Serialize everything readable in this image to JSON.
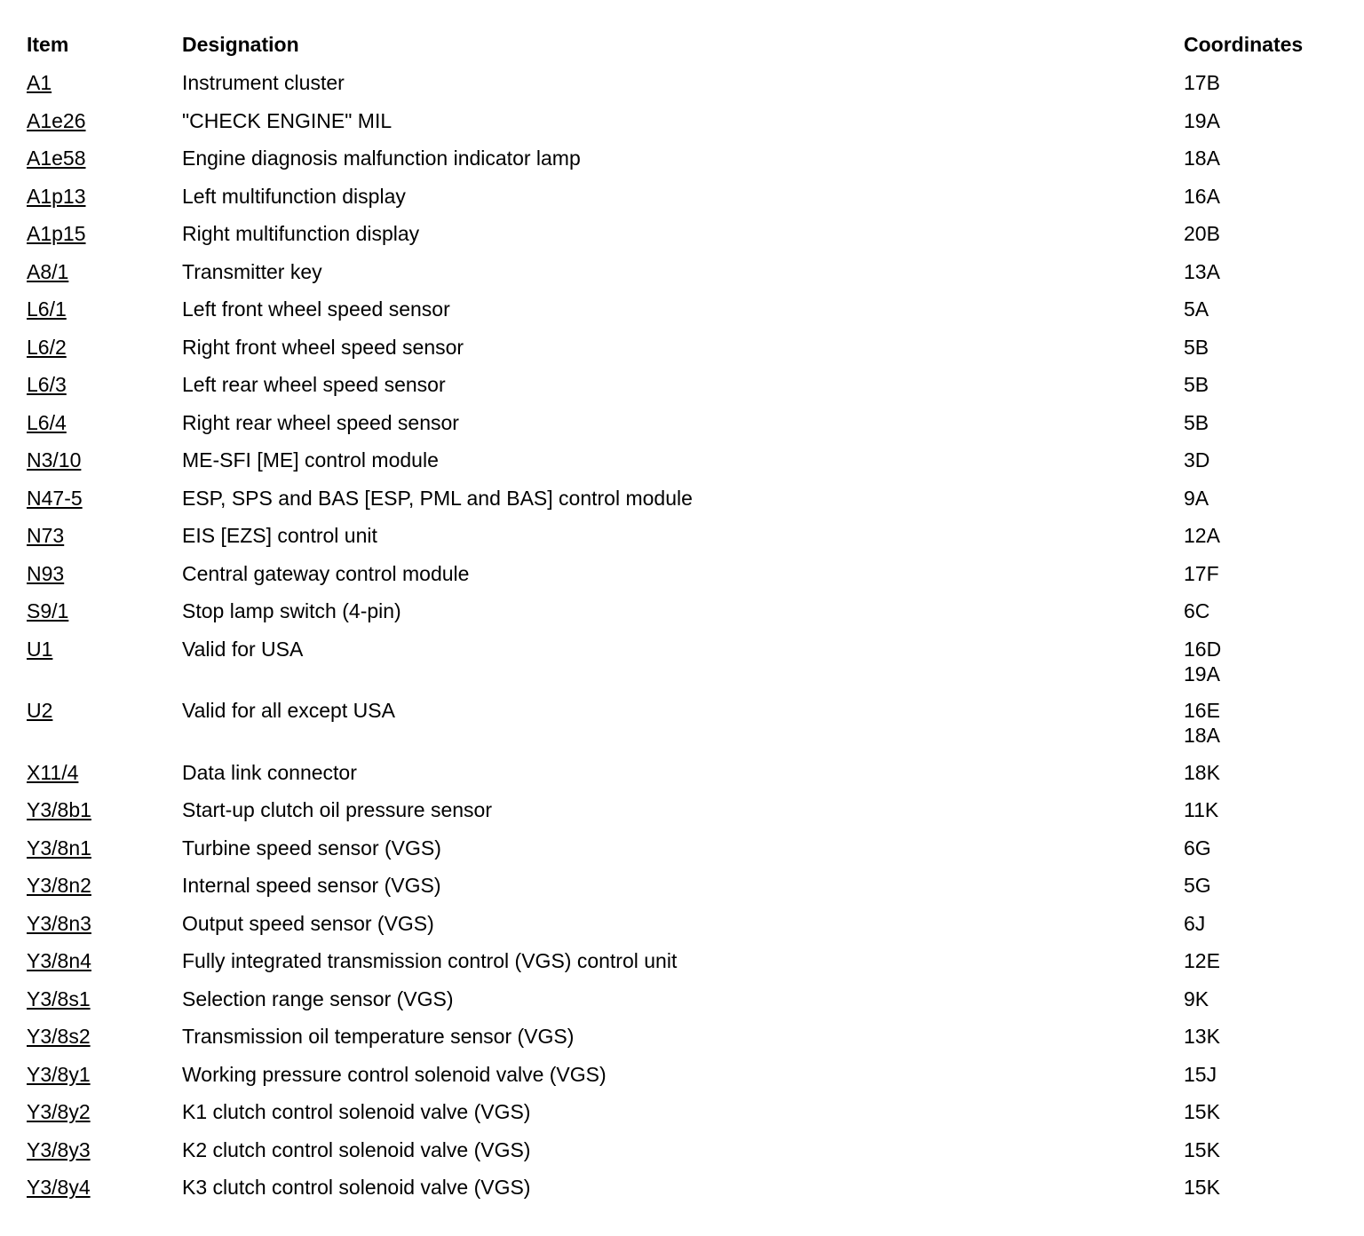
{
  "table": {
    "headers": {
      "item": "Item",
      "designation": "Designation",
      "coordinates": "Coordinates"
    },
    "rows": [
      {
        "item": "A1",
        "designation": "Instrument cluster",
        "coordinates": [
          "17B"
        ]
      },
      {
        "item": "A1e26",
        "designation": "\"CHECK ENGINE\" MIL",
        "coordinates": [
          "19A"
        ]
      },
      {
        "item": "A1e58",
        "designation": "Engine diagnosis malfunction indicator lamp",
        "coordinates": [
          "18A"
        ]
      },
      {
        "item": "A1p13",
        "designation": "Left multifunction display",
        "coordinates": [
          "16A"
        ]
      },
      {
        "item": "A1p15",
        "designation": "Right multifunction display",
        "coordinates": [
          "20B"
        ]
      },
      {
        "item": "A8/1",
        "designation": "Transmitter key",
        "coordinates": [
          "13A"
        ]
      },
      {
        "item": "L6/1",
        "designation": "Left front wheel speed sensor",
        "coordinates": [
          "5A"
        ]
      },
      {
        "item": "L6/2",
        "designation": "Right front wheel speed sensor",
        "coordinates": [
          "5B"
        ]
      },
      {
        "item": "L6/3",
        "designation": "Left rear wheel speed sensor",
        "coordinates": [
          "5B"
        ]
      },
      {
        "item": "L6/4",
        "designation": "Right rear wheel speed sensor",
        "coordinates": [
          "5B"
        ]
      },
      {
        "item": "N3/10",
        "designation": "ME-SFI [ME] control module",
        "coordinates": [
          "3D"
        ]
      },
      {
        "item": "N47-5",
        "designation": "ESP, SPS and BAS [ESP, PML and BAS] control module",
        "coordinates": [
          "9A"
        ]
      },
      {
        "item": "N73",
        "designation": "EIS [EZS] control unit",
        "coordinates": [
          "12A"
        ]
      },
      {
        "item": "N93",
        "designation": "Central gateway control module",
        "coordinates": [
          "17F"
        ]
      },
      {
        "item": "S9/1",
        "designation": "Stop lamp switch (4-pin)",
        "coordinates": [
          "6C"
        ]
      },
      {
        "item": "U1",
        "designation": "Valid for USA",
        "coordinates": [
          "16D",
          "19A"
        ]
      },
      {
        "item": "U2",
        "designation": "Valid for all except USA",
        "coordinates": [
          "16E",
          "18A"
        ]
      },
      {
        "item": "X11/4",
        "designation": "Data link connector",
        "coordinates": [
          "18K"
        ]
      },
      {
        "item": "Y3/8b1",
        "designation": "Start-up clutch oil pressure sensor",
        "coordinates": [
          "11K"
        ]
      },
      {
        "item": "Y3/8n1",
        "designation": "Turbine speed sensor (VGS)",
        "coordinates": [
          "6G"
        ]
      },
      {
        "item": "Y3/8n2",
        "designation": "Internal speed sensor (VGS)",
        "coordinates": [
          "5G"
        ]
      },
      {
        "item": "Y3/8n3",
        "designation": "Output speed sensor (VGS)",
        "coordinates": [
          "6J"
        ]
      },
      {
        "item": "Y3/8n4",
        "designation": "Fully integrated transmission control (VGS) control unit",
        "coordinates": [
          "12E"
        ]
      },
      {
        "item": "Y3/8s1",
        "designation": "Selection range sensor (VGS)",
        "coordinates": [
          "9K"
        ]
      },
      {
        "item": "Y3/8s2",
        "designation": "Transmission oil temperature sensor (VGS)",
        "coordinates": [
          "13K"
        ]
      },
      {
        "item": "Y3/8y1",
        "designation": "Working pressure control solenoid valve (VGS)",
        "coordinates": [
          "15J"
        ]
      },
      {
        "item": "Y3/8y2",
        "designation": "K1 clutch control solenoid valve (VGS)",
        "coordinates": [
          "15K"
        ]
      },
      {
        "item": "Y3/8y3",
        "designation": "K2 clutch control solenoid valve (VGS)",
        "coordinates": [
          "15K"
        ]
      },
      {
        "item": "Y3/8y4",
        "designation": "K3 clutch control solenoid valve (VGS)",
        "coordinates": [
          "15K"
        ]
      }
    ]
  }
}
